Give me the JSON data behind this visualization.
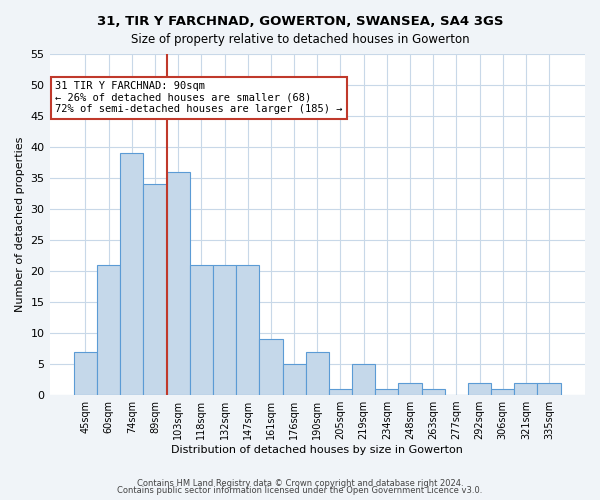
{
  "title": "31, TIR Y FARCHNAD, GOWERTON, SWANSEA, SA4 3GS",
  "subtitle": "Size of property relative to detached houses in Gowerton",
  "xlabel": "Distribution of detached houses by size in Gowerton",
  "ylabel": "Number of detached properties",
  "categories": [
    "45sqm",
    "60sqm",
    "74sqm",
    "89sqm",
    "103sqm",
    "118sqm",
    "132sqm",
    "147sqm",
    "161sqm",
    "176sqm",
    "190sqm",
    "205sqm",
    "219sqm",
    "234sqm",
    "248sqm",
    "263sqm",
    "277sqm",
    "292sqm",
    "306sqm",
    "321sqm",
    "335sqm"
  ],
  "values": [
    7,
    21,
    39,
    34,
    36,
    21,
    21,
    21,
    9,
    5,
    7,
    1,
    5,
    1,
    2,
    1,
    0,
    2,
    1,
    2,
    2
  ],
  "bar_color": "#c5d8ea",
  "bar_edge_color": "#5b9bd5",
  "bar_edge_width": 0.8,
  "ylim": [
    0,
    55
  ],
  "yticks": [
    0,
    5,
    10,
    15,
    20,
    25,
    30,
    35,
    40,
    45,
    50,
    55
  ],
  "property_line_x": 3.5,
  "property_line_color": "#c0392b",
  "annotation_text": "31 TIR Y FARCHNAD: 90sqm\n← 26% of detached houses are smaller (68)\n72% of semi-detached houses are larger (185) →",
  "annotation_box_color": "#c0392b",
  "footer_line1": "Contains HM Land Registry data © Crown copyright and database right 2024.",
  "footer_line2": "Contains public sector information licensed under the Open Government Licence v3.0.",
  "background_color": "#f0f4f8",
  "plot_background_color": "#ffffff"
}
